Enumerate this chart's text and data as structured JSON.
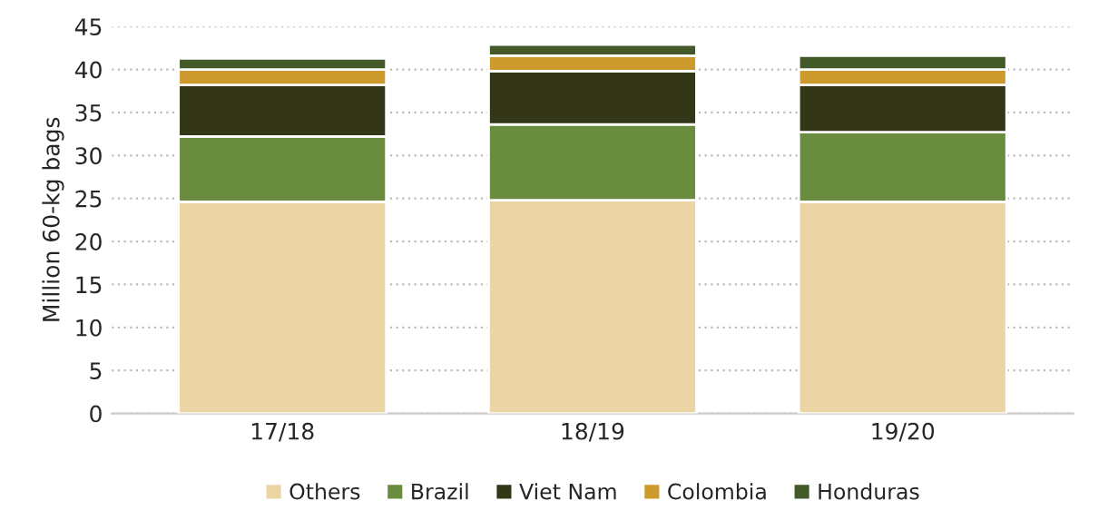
{
  "chart_data": {
    "type": "bar",
    "stacked": true,
    "ylabel": "Million 60-kg bags",
    "categories": [
      "17/18",
      "18/19",
      "19/20"
    ],
    "series": [
      {
        "name": "Others",
        "color": "#ecd5a5",
        "values": [
          24.6,
          24.8,
          24.6
        ]
      },
      {
        "name": "Brazil",
        "color": "#6a8c3f",
        "values": [
          7.6,
          8.8,
          8.1
        ]
      },
      {
        "name": "Viet Nam",
        "color": "#333718",
        "values": [
          6.0,
          6.2,
          5.5
        ]
      },
      {
        "name": "Colombia",
        "color": "#cd9a2e",
        "values": [
          1.8,
          1.8,
          1.8
        ]
      },
      {
        "name": "Honduras",
        "color": "#435a28",
        "values": [
          1.3,
          1.3,
          1.6
        ]
      }
    ],
    "ylim": [
      0,
      45
    ],
    "yticks": [
      0,
      5,
      10,
      15,
      20,
      25,
      30,
      35,
      40,
      45
    ],
    "grid": "y",
    "legend": "bottom"
  }
}
